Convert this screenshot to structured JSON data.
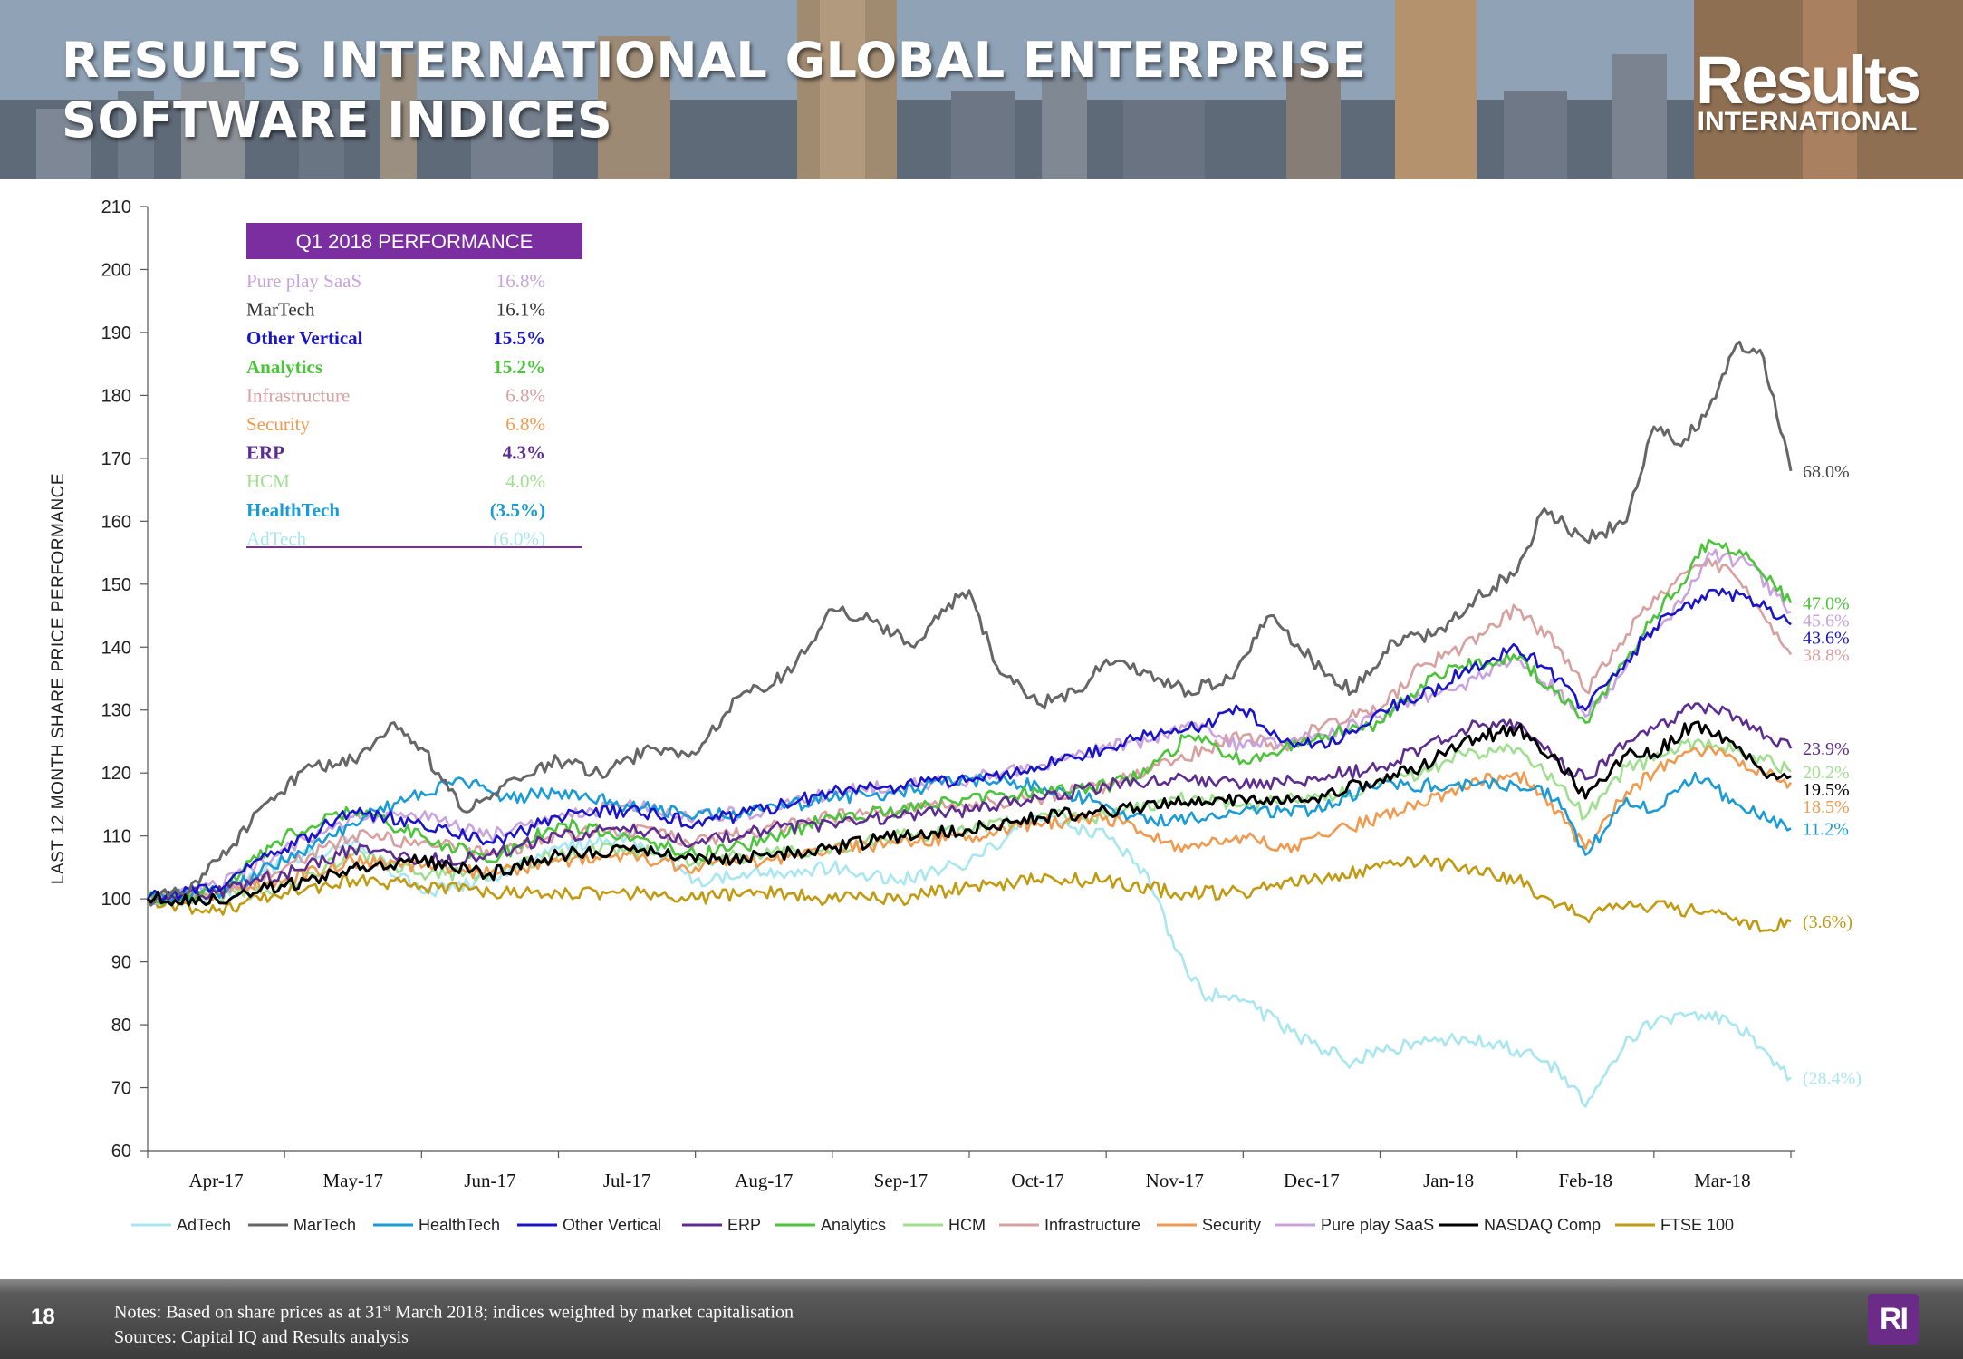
{
  "header": {
    "title": "RESULTS INTERNATIONAL GLOBAL ENTERPRISE SOFTWARE INDICES",
    "logo_top": "Results",
    "logo_bottom": "INTERNATIONAL"
  },
  "footer": {
    "page_number": "18",
    "notes_line1_pre": "Notes: Based on share prices as at 31",
    "notes_line1_sup": "st",
    "notes_line1_post": " March 2018; indices weighted by market capitalisation",
    "notes_line2": "Sources: Capital IQ and Results analysis",
    "badge": "RI"
  },
  "performance_table": {
    "title": "Q1 2018 PERFORMANCE",
    "rows": [
      {
        "name": "Pure play SaaS",
        "value": "16.8%",
        "color": "#c8a3dc",
        "bold": false
      },
      {
        "name": "MarTech",
        "value": "16.1%",
        "color": "#333333",
        "bold": false
      },
      {
        "name": "Other Vertical",
        "value": "15.5%",
        "color": "#1a14c8",
        "bold": true
      },
      {
        "name": "Analytics",
        "value": "15.2%",
        "color": "#4cc43a",
        "bold": true
      },
      {
        "name": "Infrastructure",
        "value": "6.8%",
        "color": "#d9a0a0",
        "bold": false
      },
      {
        "name": "Security",
        "value": "6.8%",
        "color": "#ef9a4e",
        "bold": false
      },
      {
        "name": "ERP",
        "value": "4.3%",
        "color": "#5d2c91",
        "bold": true
      },
      {
        "name": "HCM",
        "value": "4.0%",
        "color": "#9fdf8f",
        "bold": false
      },
      {
        "name": "HealthTech",
        "value": "(3.5%)",
        "color": "#1a9ad6",
        "bold": true
      },
      {
        "name": "AdTech",
        "value": "(6.0%)",
        "color": "#a8e6f0",
        "bold": false
      }
    ]
  },
  "chart_data": {
    "type": "line",
    "title": "",
    "ylabel": "LAST 12 MONTH SHARE PRICE PERFORMANCE",
    "xlabel": "",
    "ylim": [
      60,
      210
    ],
    "yticks": [
      60,
      70,
      80,
      90,
      100,
      110,
      120,
      130,
      140,
      150,
      160,
      170,
      180,
      190,
      200,
      210
    ],
    "x_range_months": [
      0,
      12
    ],
    "x_tick_labels": [
      "Apr-17",
      "May-17",
      "Jun-17",
      "Jul-17",
      "Aug-17",
      "Sep-17",
      "Oct-17",
      "Nov-17",
      "Dec-17",
      "Jan-18",
      "Feb-18",
      "Mar-18"
    ],
    "legend_position": "bottom",
    "series": [
      {
        "name": "AdTech",
        "color": "#a8e6f0",
        "end_label": "(28.4%)",
        "x": [
          0,
          0.5,
          1,
          1.5,
          2,
          2.5,
          3,
          3.5,
          4,
          4.5,
          5,
          5.5,
          6,
          6.5,
          7,
          7.3,
          7.5,
          7.7,
          8,
          8.4,
          8.8,
          9,
          9.3,
          9.6,
          10,
          10.3,
          10.5,
          10.8,
          11,
          11.3,
          11.6,
          12
        ],
        "values": [
          100,
          100,
          106,
          109,
          101,
          103,
          108,
          110,
          103,
          104,
          105,
          103,
          106,
          113,
          110,
          104,
          92,
          85,
          84,
          78,
          74,
          76,
          77,
          78,
          76,
          73,
          67,
          78,
          80,
          82,
          80,
          71.6
        ]
      },
      {
        "name": "MarTech",
        "color": "#666666",
        "end_label": "68.0%",
        "x": [
          0,
          0.3,
          0.6,
          0.9,
          1.2,
          1.5,
          1.8,
          2.0,
          2.3,
          2.6,
          3,
          3.3,
          3.7,
          4,
          4.3,
          4.7,
          5,
          5.3,
          5.6,
          5.8,
          6,
          6.2,
          6.5,
          6.8,
          7,
          7.3,
          7.6,
          7.9,
          8.2,
          8.5,
          8.8,
          9.1,
          9.4,
          9.7,
          10,
          10.2,
          10.5,
          10.8,
          11,
          11.2,
          11.4,
          11.6,
          11.8,
          12
        ],
        "values": [
          100,
          101,
          108,
          116,
          121,
          122,
          128,
          124,
          114,
          118,
          122,
          120,
          124,
          123,
          132,
          136,
          146,
          144,
          140,
          146,
          149,
          137,
          131,
          133,
          138,
          136,
          133,
          135,
          145,
          138,
          133,
          141,
          142,
          148,
          152,
          162,
          157,
          160,
          175,
          172,
          178,
          188,
          186,
          168
        ]
      },
      {
        "name": "HealthTech",
        "color": "#1a9ad6",
        "end_label": "11.2%",
        "x": [
          0,
          0.5,
          1,
          1.5,
          2,
          2.3,
          2.6,
          3,
          3.5,
          4,
          4.5,
          5,
          5.5,
          6,
          6.5,
          7,
          7.3,
          7.6,
          8,
          8.5,
          9,
          9.5,
          10,
          10.3,
          10.5,
          10.8,
          11,
          11.3,
          11.6,
          12
        ],
        "values": [
          100,
          101,
          106,
          112,
          117,
          119,
          116,
          117,
          115,
          113,
          114,
          116,
          117,
          119,
          118,
          115,
          112,
          113,
          114,
          114,
          118,
          118,
          118,
          116,
          107,
          116,
          114,
          120,
          115,
          111.2
        ]
      },
      {
        "name": "Other Vertical",
        "color": "#1a14c8",
        "end_label": "43.6%",
        "x": [
          0,
          0.5,
          1,
          1.5,
          2,
          2.5,
          3,
          3.5,
          4,
          4.5,
          5,
          5.5,
          6,
          6.5,
          7,
          7.3,
          7.6,
          8,
          8.3,
          8.6,
          9,
          9.3,
          9.6,
          10,
          10.3,
          10.5,
          10.8,
          11,
          11.2,
          11.4,
          11.7,
          12
        ],
        "values": [
          100,
          102,
          108,
          114,
          112,
          109,
          113,
          114,
          112,
          114,
          117,
          118,
          119,
          121,
          124,
          126,
          127,
          130,
          125,
          124,
          130,
          132,
          136,
          140,
          135,
          130,
          138,
          143,
          146,
          149,
          148,
          143.6
        ]
      },
      {
        "name": "ERP",
        "color": "#5d2c91",
        "end_label": "23.9%",
        "x": [
          0,
          0.5,
          1,
          1.5,
          2,
          2.5,
          3,
          3.5,
          4,
          4.5,
          5,
          5.5,
          6,
          6.5,
          7,
          7.5,
          8,
          8.5,
          9,
          9.3,
          9.6,
          10,
          10.3,
          10.5,
          10.8,
          11,
          11.3,
          11.6,
          12
        ],
        "values": [
          100,
          101,
          104,
          108,
          106,
          107,
          110,
          111,
          109,
          111,
          112,
          113,
          114,
          116,
          118,
          119,
          118,
          119,
          121,
          124,
          127,
          128,
          122,
          119,
          125,
          127,
          131,
          129,
          123.9
        ]
      },
      {
        "name": "Analytics",
        "color": "#4cc43a",
        "end_label": "47.0%",
        "x": [
          0,
          0.5,
          1,
          1.5,
          2,
          2.5,
          3,
          3.5,
          4,
          4.5,
          5,
          5.5,
          6,
          6.5,
          7,
          7.3,
          7.6,
          8,
          8.3,
          8.6,
          9,
          9.3,
          9.6,
          10,
          10.3,
          10.5,
          10.8,
          11,
          11.2,
          11.4,
          11.7,
          12
        ],
        "values": [
          100,
          101,
          110,
          114,
          110,
          106,
          112,
          110,
          107,
          109,
          113,
          114,
          116,
          117,
          118,
          120,
          126,
          122,
          124,
          126,
          128,
          134,
          137,
          138,
          133,
          128,
          138,
          145,
          150,
          157,
          154,
          147
        ]
      },
      {
        "name": "HCM",
        "color": "#9fdf8f",
        "end_label": "20.2%",
        "x": [
          0,
          0.5,
          1,
          1.5,
          2,
          2.5,
          3,
          3.5,
          4,
          4.5,
          5,
          5.5,
          6,
          6.5,
          7,
          7.5,
          8,
          8.5,
          9,
          9.3,
          9.6,
          10,
          10.3,
          10.5,
          10.8,
          11,
          11.3,
          11.6,
          12
        ],
        "values": [
          100,
          100,
          102,
          107,
          104,
          104,
          107,
          108,
          106,
          107,
          108,
          110,
          111,
          113,
          113,
          116,
          115,
          116,
          118,
          120,
          123,
          124,
          118,
          113,
          121,
          122,
          125,
          124,
          120.2
        ]
      },
      {
        "name": "Infrastructure",
        "color": "#d9a0a0",
        "end_label": "38.8%",
        "x": [
          0,
          0.5,
          1,
          1.5,
          2,
          2.5,
          3,
          3.5,
          4,
          4.5,
          5,
          5.5,
          6,
          6.5,
          7,
          7.5,
          8,
          8.3,
          8.6,
          9,
          9.3,
          9.6,
          10,
          10.3,
          10.5,
          10.8,
          11,
          11.3,
          11.5,
          11.7,
          12
        ],
        "values": [
          100,
          101,
          105,
          110,
          109,
          107,
          110,
          111,
          109,
          111,
          113,
          114,
          115,
          116,
          118,
          122,
          126,
          124,
          128,
          130,
          137,
          140,
          146,
          140,
          133,
          142,
          148,
          153,
          153,
          148,
          138.8
        ]
      },
      {
        "name": "Security",
        "color": "#ef9a4e",
        "end_label": "18.5%",
        "x": [
          0,
          0.5,
          1,
          1.5,
          2,
          2.5,
          3,
          3.5,
          4,
          4.5,
          5,
          5.5,
          6,
          6.5,
          7,
          7.3,
          7.6,
          8,
          8.3,
          8.6,
          9,
          9.3,
          9.6,
          10,
          10.3,
          10.5,
          10.8,
          11,
          11.3,
          11.6,
          12
        ],
        "values": [
          100,
          101,
          103,
          106,
          105,
          104,
          106,
          107,
          105,
          106,
          108,
          109,
          110,
          112,
          113,
          110,
          108,
          110,
          108,
          110,
          113,
          115,
          118,
          120,
          114,
          108,
          117,
          120,
          124,
          122,
          118.5
        ]
      },
      {
        "name": "Pure play SaaS",
        "color": "#c8a3dc",
        "end_label": "45.6%",
        "x": [
          0,
          0.5,
          1,
          1.5,
          2,
          2.5,
          3,
          3.5,
          4,
          4.5,
          5,
          5.5,
          6,
          6.5,
          7,
          7.3,
          7.6,
          8,
          8.3,
          8.6,
          9,
          9.3,
          9.6,
          10,
          10.3,
          10.5,
          10.8,
          11,
          11.2,
          11.4,
          11.7,
          12
        ],
        "values": [
          100,
          102,
          108,
          113,
          113,
          110,
          113,
          115,
          113,
          114,
          117,
          118,
          119,
          121,
          124,
          125,
          128,
          124,
          125,
          126,
          129,
          132,
          134,
          138,
          133,
          129,
          137,
          143,
          147,
          155,
          153,
          145.6
        ]
      },
      {
        "name": "NASDAQ Comp",
        "color": "#000000",
        "end_label": "19.5%",
        "x": [
          0,
          0.5,
          1,
          1.5,
          2,
          2.5,
          3,
          3.5,
          4,
          4.5,
          5,
          5.5,
          6,
          6.5,
          7,
          7.5,
          8,
          8.5,
          9,
          9.3,
          9.6,
          10,
          10.3,
          10.5,
          10.8,
          11,
          11.3,
          11.6,
          11.8,
          12
        ],
        "values": [
          100,
          100,
          102,
          105,
          106,
          104,
          107,
          108,
          106,
          107,
          108,
          110,
          111,
          113,
          114,
          115,
          116,
          116,
          119,
          121,
          125,
          127,
          122,
          116,
          123,
          123,
          128,
          124,
          120,
          119.5
        ]
      },
      {
        "name": "FTSE 100",
        "color": "#c29a12",
        "end_label": "(3.6%)",
        "x": [
          0,
          0.5,
          1,
          1.5,
          2,
          2.5,
          3,
          3.5,
          4,
          4.5,
          5,
          5.5,
          6,
          6.5,
          7,
          7.5,
          8,
          8.5,
          9,
          9.3,
          9.6,
          10,
          10.3,
          10.5,
          10.8,
          11,
          11.3,
          11.6,
          11.8,
          12
        ],
        "values": [
          100,
          98,
          101,
          103,
          102,
          101,
          101,
          101,
          100,
          101,
          100,
          100,
          102,
          103,
          103,
          101,
          101,
          103,
          105,
          106,
          105,
          103,
          99,
          97,
          99,
          99,
          98,
          97,
          95,
          96.4
        ]
      }
    ],
    "end_labels_order": [
      "68.0%",
      "47.0%",
      "45.6%",
      "43.6%",
      "38.8%",
      "23.9%",
      "20.2%",
      "19.5%",
      "18.5%",
      "11.2%",
      "(3.6%)",
      "(28.4%)"
    ]
  }
}
